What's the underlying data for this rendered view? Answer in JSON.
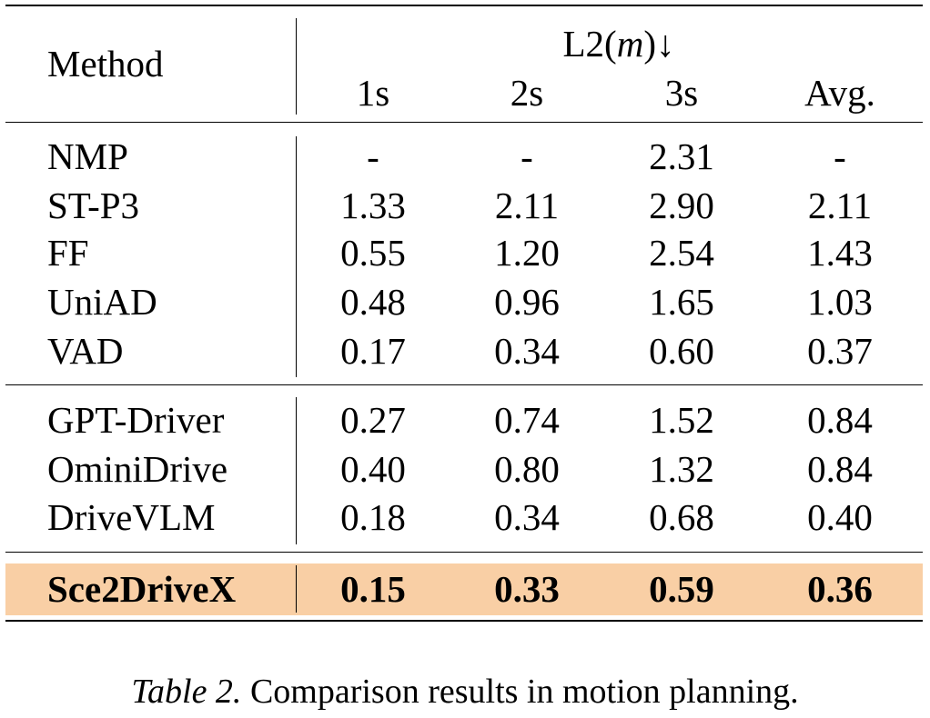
{
  "table": {
    "header": {
      "method": "Method",
      "group_prefix": "L2(",
      "group_unit": "m",
      "group_suffix": ")↓",
      "columns": [
        "1s",
        "2s",
        "3s",
        "Avg."
      ]
    },
    "groups": [
      {
        "rows": [
          {
            "method": "NMP",
            "values": [
              "-",
              "-",
              "2.31",
              "-"
            ]
          },
          {
            "method": "ST-P3",
            "values": [
              "1.33",
              "2.11",
              "2.90",
              "2.11"
            ]
          },
          {
            "method": "FF",
            "values": [
              "0.55",
              "1.20",
              "2.54",
              "1.43"
            ]
          },
          {
            "method": "UniAD",
            "values": [
              "0.48",
              "0.96",
              "1.65",
              "1.03"
            ]
          },
          {
            "method": "VAD",
            "values": [
              "0.17",
              "0.34",
              "0.60",
              "0.37"
            ]
          }
        ]
      },
      {
        "rows": [
          {
            "method": "GPT-Driver",
            "values": [
              "0.27",
              "0.74",
              "1.52",
              "0.84"
            ]
          },
          {
            "method": "OminiDrive",
            "values": [
              "0.40",
              "0.80",
              "1.32",
              "0.84"
            ]
          },
          {
            "method": "DriveVLM",
            "values": [
              "0.18",
              "0.34",
              "0.68",
              "0.40"
            ]
          }
        ]
      },
      {
        "highlight_color": "#f9cfa5",
        "rows": [
          {
            "method": "Sce2DriveX",
            "values": [
              "0.15",
              "0.33",
              "0.59",
              "0.36"
            ],
            "bold": true
          }
        ]
      }
    ]
  },
  "caption": {
    "label": "Table 2.",
    "text": " Comparison results in motion planning."
  }
}
